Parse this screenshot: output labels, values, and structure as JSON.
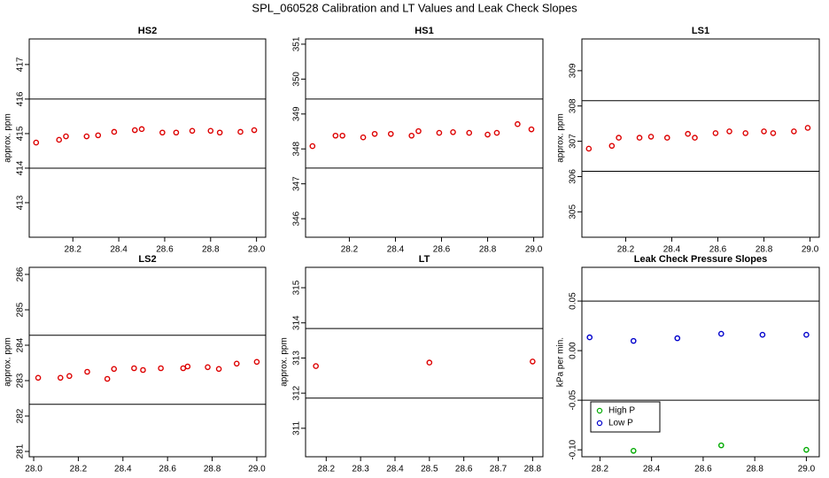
{
  "title": "SPL_060528  Calibration and LT Values and Leak Check Slopes",
  "chart_data": [
    {
      "type": "scatter",
      "title": "HS2",
      "ylabel": "approx. ppm",
      "xlim": [
        28.01,
        29.04
      ],
      "xticks": [
        28.2,
        28.4,
        28.6,
        28.8,
        {
          "value": 29,
          "label": "29.0"
        }
      ],
      "ylim": [
        412.0,
        417.74
      ],
      "yticks": [
        413,
        414,
        415,
        416,
        417
      ],
      "hlines": [
        414,
        416
      ],
      "series": [
        {
          "color": "#dd0000",
          "x": [
            28.04,
            28.14,
            28.17,
            28.26,
            28.31,
            28.38,
            28.47,
            28.5,
            28.59,
            28.65,
            28.72,
            28.8,
            28.84,
            28.93,
            28.99
          ],
          "values": [
            414.74,
            414.82,
            414.92,
            414.92,
            414.95,
            415.05,
            415.1,
            415.13,
            415.03,
            415.03,
            415.08,
            415.08,
            415.03,
            415.05,
            415.1
          ]
        }
      ]
    },
    {
      "type": "scatter",
      "title": "HS1",
      "xlim": [
        28.01,
        29.04
      ],
      "xticks": [
        28.2,
        28.4,
        28.6,
        28.8,
        {
          "value": 29,
          "label": "29.0"
        }
      ],
      "ylim": [
        345.47,
        351.15
      ],
      "yticks": [
        346,
        347,
        348,
        349,
        350,
        351
      ],
      "hlines": [
        347.45,
        349.43
      ],
      "series": [
        {
          "color": "#dd0000",
          "x": [
            28.04,
            28.14,
            28.17,
            28.26,
            28.31,
            28.38,
            28.47,
            28.5,
            28.59,
            28.65,
            28.72,
            28.8,
            28.84,
            28.93,
            28.99
          ],
          "values": [
            348.08,
            348.38,
            348.38,
            348.33,
            348.43,
            348.43,
            348.38,
            348.51,
            348.46,
            348.48,
            348.46,
            348.41,
            348.46,
            348.71,
            348.56
          ]
        }
      ]
    },
    {
      "type": "scatter",
      "title": "LS1",
      "ylabel": "approx. ppm",
      "xlim": [
        28.01,
        29.04
      ],
      "xticks": [
        28.2,
        28.4,
        28.6,
        28.8,
        {
          "value": 29,
          "label": "29.0"
        }
      ],
      "ylim": [
        304.28,
        309.9
      ],
      "yticks": [
        305,
        306,
        307,
        308,
        309
      ],
      "hlines": [
        306.15,
        308.15
      ],
      "series": [
        {
          "color": "#dd0000",
          "x": [
            28.04,
            28.14,
            28.17,
            28.26,
            28.31,
            28.38,
            28.47,
            28.5,
            28.59,
            28.65,
            28.72,
            28.8,
            28.84,
            28.93,
            28.99
          ],
          "values": [
            306.79,
            306.87,
            307.1,
            307.1,
            307.13,
            307.1,
            307.21,
            307.1,
            307.23,
            307.28,
            307.23,
            307.28,
            307.23,
            307.28,
            307.38
          ]
        }
      ]
    },
    {
      "type": "scatter",
      "title": "LS2",
      "ylabel": "approx. ppm",
      "xlim": [
        27.98,
        29.04
      ],
      "xticks": [
        {
          "value": 28,
          "label": "28.0"
        },
        28.2,
        28.4,
        28.6,
        28.8,
        {
          "value": 29,
          "label": "29.0"
        }
      ],
      "ylim": [
        280.85,
        286.2
      ],
      "yticks": [
        281,
        282,
        283,
        284,
        285,
        286
      ],
      "hlines": [
        282.33,
        284.28
      ],
      "series": [
        {
          "color": "#dd0000",
          "x": [
            28.02,
            28.12,
            28.16,
            28.24,
            28.33,
            28.36,
            28.45,
            28.49,
            28.57,
            28.67,
            28.69,
            28.78,
            28.83,
            28.91,
            29.0
          ],
          "values": [
            283.08,
            283.08,
            283.13,
            283.25,
            283.05,
            283.33,
            283.35,
            283.3,
            283.35,
            283.35,
            283.4,
            283.38,
            283.33,
            283.48,
            283.53
          ]
        }
      ]
    },
    {
      "type": "scatter",
      "title": "LT",
      "ylabel": "approx. ppm",
      "xlim": [
        28.14,
        28.83
      ],
      "xticks": [
        28.2,
        28.3,
        28.4,
        28.5,
        28.6,
        28.7,
        28.8
      ],
      "ylim": [
        310.19,
        315.58
      ],
      "yticks": [
        311,
        312,
        313,
        314,
        315
      ],
      "hlines": [
        311.86,
        313.84
      ],
      "series": [
        {
          "color": "#dd0000",
          "x": [
            28.17,
            28.5,
            28.8
          ],
          "values": [
            312.77,
            312.87,
            312.9
          ]
        }
      ]
    },
    {
      "type": "scatter",
      "title": "Leak Check Pressure Slopes",
      "ylabel": "kPa per min.",
      "xlim": [
        28.13,
        29.05
      ],
      "xticks": [
        28.2,
        28.4,
        28.6,
        28.8,
        {
          "value": 29,
          "label": "29.0"
        }
      ],
      "ylim": [
        -0.107,
        0.084
      ],
      "yticks": [
        {
          "value": -0.1,
          "label": "-0.10"
        },
        -0.05,
        {
          "value": 0,
          "label": "0.00"
        },
        0.05
      ],
      "hlines": [
        -0.05,
        0.05
      ],
      "legend": "lower left",
      "series": [
        {
          "name": "High P",
          "color": "#00aa00",
          "x": [
            28.33,
            28.67,
            29.0
          ],
          "values": [
            -0.101,
            -0.0955,
            -0.1
          ]
        },
        {
          "name": "Low P",
          "color": "#0000cc",
          "x": [
            28.16,
            28.33,
            28.5,
            28.67,
            28.83,
            29.0
          ],
          "values": [
            0.0134,
            0.0098,
            0.0125,
            0.017,
            0.016,
            0.016
          ]
        }
      ]
    }
  ]
}
